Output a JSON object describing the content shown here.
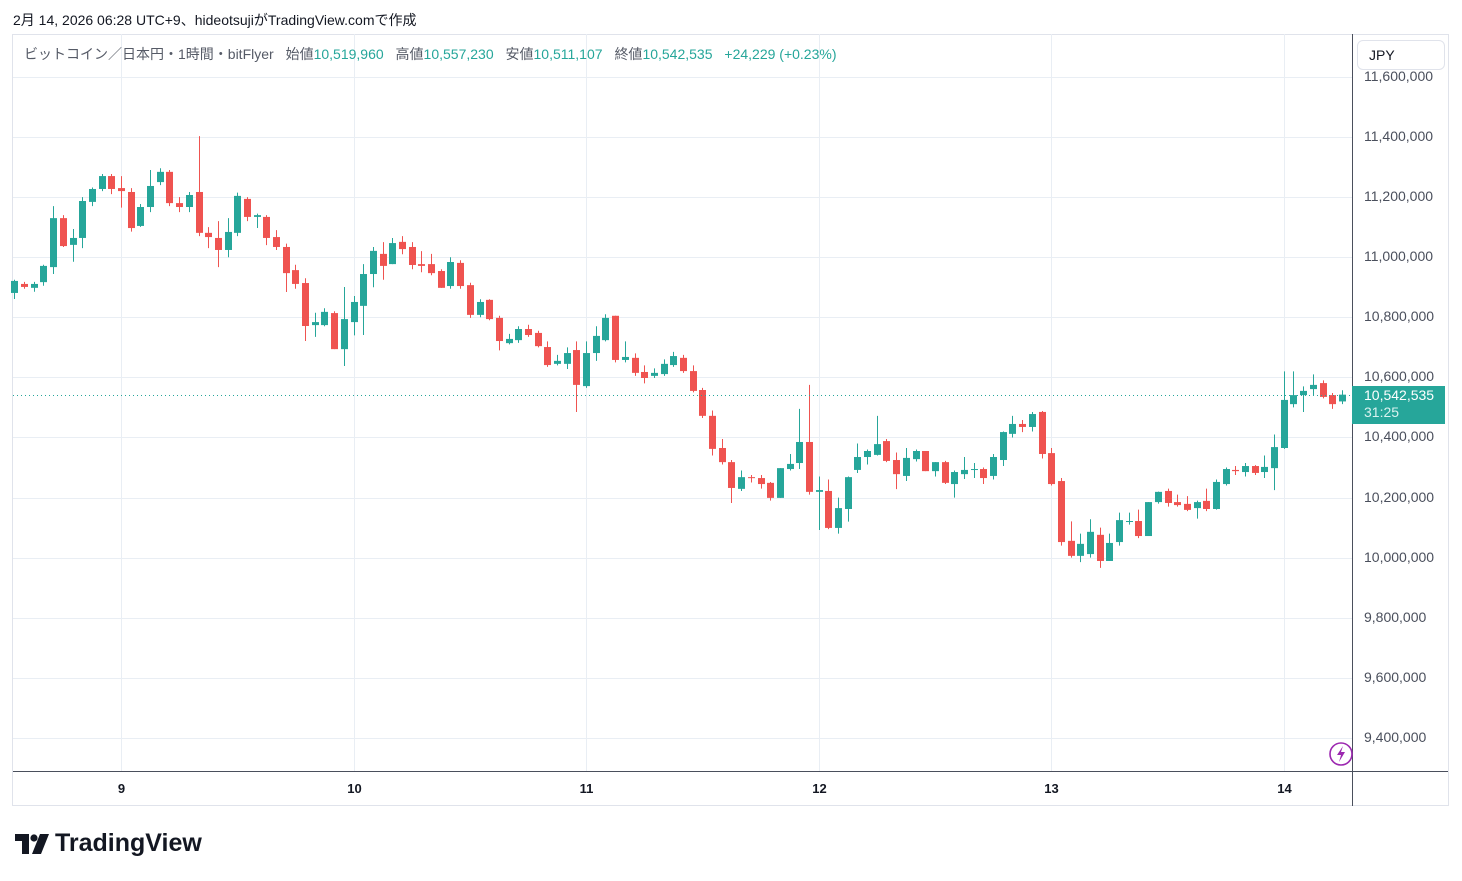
{
  "caption": "2月 14, 2026 06:28 UTC+9、hideotsujiがTradingView.comで作成",
  "legend": {
    "symbol": "ビットコイン／日本円・1時間・bitFlyer",
    "open_label": "始値",
    "open": "10,519,960",
    "high_label": "高値",
    "high": "10,557,230",
    "low_label": "安値",
    "low": "10,511,107",
    "close_label": "終値",
    "close": "10,542,535",
    "change": "+24,229 (+0.23%)"
  },
  "currency": "JPY",
  "price_tag": {
    "price": "10,542,535",
    "countdown": "31:25"
  },
  "logo_text": "TradingView",
  "colors": {
    "up": "#26a69a",
    "down": "#ef5350",
    "grid": "#e9eef4",
    "lightning": "#9c27b0"
  },
  "chart_data": {
    "type": "candlestick",
    "title": "ビットコイン／日本円・1時間・bitFlyer",
    "interval": "1h",
    "ylabel": "JPY",
    "ylim": [
      9300000,
      11620000
    ],
    "yticks": [
      "9,400,000",
      "9,600,000",
      "9,800,000",
      "10,000,000",
      "10,200,000",
      "10,400,000",
      "10,600,000",
      "10,800,000",
      "11,000,000",
      "11,200,000",
      "11,400,000",
      "11,600,000"
    ],
    "ytick_values": [
      9400000,
      9600000,
      9800000,
      10000000,
      10200000,
      10400000,
      10600000,
      10800000,
      11000000,
      11200000,
      11400000,
      11600000
    ],
    "xticks": [
      {
        "label": "9",
        "index": 11
      },
      {
        "label": "10",
        "index": 35
      },
      {
        "label": "11",
        "index": 59
      },
      {
        "label": "12",
        "index": 83
      },
      {
        "label": "13",
        "index": 107
      },
      {
        "label": "14",
        "index": 131
      }
    ],
    "grid": true,
    "last_price": 10542535,
    "ohlc_columns": [
      "open",
      "high",
      "low",
      "close"
    ],
    "ohlc": [
      [
        10881000,
        10925000,
        10861000,
        10921000
      ],
      [
        10911000,
        10918000,
        10895000,
        10901000
      ],
      [
        10898000,
        10918000,
        10885000,
        10911000
      ],
      [
        10917000,
        10975000,
        10905000,
        10971000
      ],
      [
        10967000,
        11170000,
        10944000,
        11130000
      ],
      [
        11130000,
        11140000,
        11034000,
        11037000
      ],
      [
        11041000,
        11094000,
        10985000,
        11064000
      ],
      [
        11064000,
        11200000,
        11030000,
        11187000
      ],
      [
        11184000,
        11232000,
        11170000,
        11227000
      ],
      [
        11227000,
        11277000,
        11220000,
        11270000
      ],
      [
        11270000,
        11277000,
        11210000,
        11227000
      ],
      [
        11230000,
        11270000,
        11165000,
        11220000
      ],
      [
        11217000,
        11230000,
        11085000,
        11097000
      ],
      [
        11104000,
        11177000,
        11101000,
        11167000
      ],
      [
        11167000,
        11290000,
        11150000,
        11237000
      ],
      [
        11250000,
        11296000,
        11240000,
        11284000
      ],
      [
        11284000,
        11290000,
        11170000,
        11180000
      ],
      [
        11180000,
        11200000,
        11150000,
        11167000
      ],
      [
        11167000,
        11217000,
        11150000,
        11207000
      ],
      [
        11217000,
        11403000,
        11070000,
        11081000
      ],
      [
        11081000,
        11100000,
        11030000,
        11067000
      ],
      [
        11064000,
        11120000,
        10967000,
        11024000
      ],
      [
        11024000,
        11130000,
        11000000,
        11084000
      ],
      [
        11081000,
        11215000,
        11070000,
        11204000
      ],
      [
        11194000,
        11200000,
        11120000,
        11134000
      ],
      [
        11134000,
        11145000,
        11097000,
        11140000
      ],
      [
        11134000,
        11140000,
        11040000,
        11064000
      ],
      [
        11067000,
        11090000,
        11024000,
        11034000
      ],
      [
        11034000,
        11045000,
        10884000,
        10947000
      ],
      [
        10957000,
        10975000,
        10895000,
        10911000
      ],
      [
        10914000,
        10930000,
        10721000,
        10771000
      ],
      [
        10774000,
        10815000,
        10735000,
        10784000
      ],
      [
        10774000,
        10830000,
        10770000,
        10818000
      ],
      [
        10814000,
        10820000,
        10694000,
        10694000
      ],
      [
        10694000,
        10901000,
        10638000,
        10794000
      ],
      [
        10784000,
        10871000,
        10740000,
        10851000
      ],
      [
        10838000,
        10977000,
        10741000,
        10944000
      ],
      [
        10944000,
        11034000,
        10900000,
        11021000
      ],
      [
        11011000,
        11050000,
        10925000,
        10971000
      ],
      [
        10977000,
        11064000,
        10977000,
        11047000
      ],
      [
        11051000,
        11070000,
        11010000,
        11027000
      ],
      [
        11034000,
        11050000,
        10960000,
        10974000
      ],
      [
        10977000,
        11020000,
        10950000,
        10971000
      ],
      [
        10977000,
        11011000,
        10940000,
        10947000
      ],
      [
        10954000,
        10960000,
        10898000,
        10898000
      ],
      [
        10904000,
        11000000,
        10895000,
        10984000
      ],
      [
        10981000,
        10990000,
        10895000,
        10904000
      ],
      [
        10907000,
        10915000,
        10798000,
        10808000
      ],
      [
        10808000,
        10860000,
        10800000,
        10851000
      ],
      [
        10858000,
        10860000,
        10790000,
        10794000
      ],
      [
        10798000,
        10805000,
        10690000,
        10721000
      ],
      [
        10714000,
        10745000,
        10710000,
        10728000
      ],
      [
        10724000,
        10770000,
        10715000,
        10761000
      ],
      [
        10761000,
        10775000,
        10735000,
        10741000
      ],
      [
        10748000,
        10755000,
        10700000,
        10704000
      ],
      [
        10701000,
        10720000,
        10635000,
        10641000
      ],
      [
        10645000,
        10675000,
        10640000,
        10655000
      ],
      [
        10645000,
        10700000,
        10628000,
        10681000
      ],
      [
        10691000,
        10720000,
        10485000,
        10575000
      ],
      [
        10571000,
        10720000,
        10565000,
        10681000
      ],
      [
        10681000,
        10770000,
        10655000,
        10738000
      ],
      [
        10724000,
        10810000,
        10720000,
        10798000
      ],
      [
        10805000,
        10805000,
        10650000,
        10658000
      ],
      [
        10658000,
        10720000,
        10650000,
        10668000
      ],
      [
        10665000,
        10680000,
        10605000,
        10615000
      ],
      [
        10618000,
        10640000,
        10580000,
        10598000
      ],
      [
        10605000,
        10630000,
        10598000,
        10615000
      ],
      [
        10611000,
        10660000,
        10605000,
        10645000
      ],
      [
        10641000,
        10685000,
        10635000,
        10671000
      ],
      [
        10665000,
        10675000,
        10615000,
        10621000
      ],
      [
        10621000,
        10640000,
        10550000,
        10555000
      ],
      [
        10558000,
        10565000,
        10465000,
        10472000
      ],
      [
        10472000,
        10490000,
        10340000,
        10362000
      ],
      [
        10365000,
        10395000,
        10310000,
        10318000
      ],
      [
        10318000,
        10325000,
        10182000,
        10232000
      ],
      [
        10229000,
        10290000,
        10222000,
        10268000
      ],
      [
        10268000,
        10275000,
        10250000,
        10265000
      ],
      [
        10265000,
        10275000,
        10230000,
        10245000
      ],
      [
        10249000,
        10252000,
        10190000,
        10199000
      ],
      [
        10199000,
        10298000,
        10199000,
        10298000
      ],
      [
        10295000,
        10345000,
        10290000,
        10312000
      ],
      [
        10315000,
        10495000,
        10295000,
        10385000
      ],
      [
        10385000,
        10575000,
        10210000,
        10219000
      ],
      [
        10219000,
        10270000,
        10092000,
        10225000
      ],
      [
        10222000,
        10260000,
        10095000,
        10099000
      ],
      [
        10099000,
        10200000,
        10080000,
        10165000
      ],
      [
        10162000,
        10270000,
        10120000,
        10268000
      ],
      [
        10292000,
        10380000,
        10282000,
        10335000
      ],
      [
        10335000,
        10360000,
        10310000,
        10355000
      ],
      [
        10342000,
        10472000,
        10340000,
        10378000
      ],
      [
        10388000,
        10395000,
        10318000,
        10322000
      ],
      [
        10325000,
        10350000,
        10228000,
        10278000
      ],
      [
        10272000,
        10365000,
        10255000,
        10332000
      ],
      [
        10328000,
        10360000,
        10320000,
        10355000
      ],
      [
        10355000,
        10355000,
        10288000,
        10288000
      ],
      [
        10288000,
        10318000,
        10270000,
        10318000
      ],
      [
        10318000,
        10322000,
        10245000,
        10249000
      ],
      [
        10245000,
        10290000,
        10200000,
        10285000
      ],
      [
        10278000,
        10335000,
        10262000,
        10292000
      ],
      [
        10292000,
        10315000,
        10265000,
        10295000
      ],
      [
        10295000,
        10300000,
        10245000,
        10265000
      ],
      [
        10272000,
        10345000,
        10260000,
        10335000
      ],
      [
        10325000,
        10420000,
        10305000,
        10418000
      ],
      [
        10412000,
        10472000,
        10400000,
        10445000
      ],
      [
        10445000,
        10458000,
        10418000,
        10435000
      ],
      [
        10435000,
        10485000,
        10420000,
        10478000
      ],
      [
        10485000,
        10488000,
        10330000,
        10345000
      ],
      [
        10348000,
        10365000,
        10240000,
        10245000
      ],
      [
        10255000,
        10265000,
        10040000,
        10052000
      ],
      [
        10056000,
        10121000,
        10000000,
        10006000
      ],
      [
        10006000,
        10080000,
        9985000,
        10046000
      ],
      [
        10012000,
        10128000,
        10000000,
        10086000
      ],
      [
        10076000,
        10100000,
        9966000,
        9989000
      ],
      [
        9989000,
        10080000,
        9989000,
        10049000
      ],
      [
        10052000,
        10150000,
        10040000,
        10125000
      ],
      [
        10119000,
        10150000,
        10110000,
        10122000
      ],
      [
        10122000,
        10160000,
        10065000,
        10072000
      ],
      [
        10072000,
        10185000,
        10072000,
        10185000
      ],
      [
        10185000,
        10220000,
        10180000,
        10219000
      ],
      [
        10222000,
        10230000,
        10170000,
        10182000
      ],
      [
        10185000,
        10210000,
        10170000,
        10175000
      ],
      [
        10179000,
        10205000,
        10155000,
        10159000
      ],
      [
        10165000,
        10190000,
        10130000,
        10185000
      ],
      [
        10189000,
        10230000,
        10155000,
        10162000
      ],
      [
        10162000,
        10260000,
        10160000,
        10252000
      ],
      [
        10245000,
        10300000,
        10240000,
        10295000
      ],
      [
        10292000,
        10305000,
        10275000,
        10288000
      ],
      [
        10285000,
        10315000,
        10270000,
        10305000
      ],
      [
        10305000,
        10308000,
        10275000,
        10282000
      ],
      [
        10285000,
        10340000,
        10265000,
        10302000
      ],
      [
        10298000,
        10410000,
        10225000,
        10368000
      ],
      [
        10365000,
        10620000,
        10362000,
        10525000
      ],
      [
        10511000,
        10620000,
        10500000,
        10541000
      ],
      [
        10541000,
        10570000,
        10485000,
        10555000
      ],
      [
        10561000,
        10610000,
        10540000,
        10575000
      ],
      [
        10581000,
        10590000,
        10530000,
        10535000
      ],
      [
        10541000,
        10548000,
        10495000,
        10511000
      ],
      [
        10519960,
        10557230,
        10511107,
        10542535
      ]
    ]
  }
}
